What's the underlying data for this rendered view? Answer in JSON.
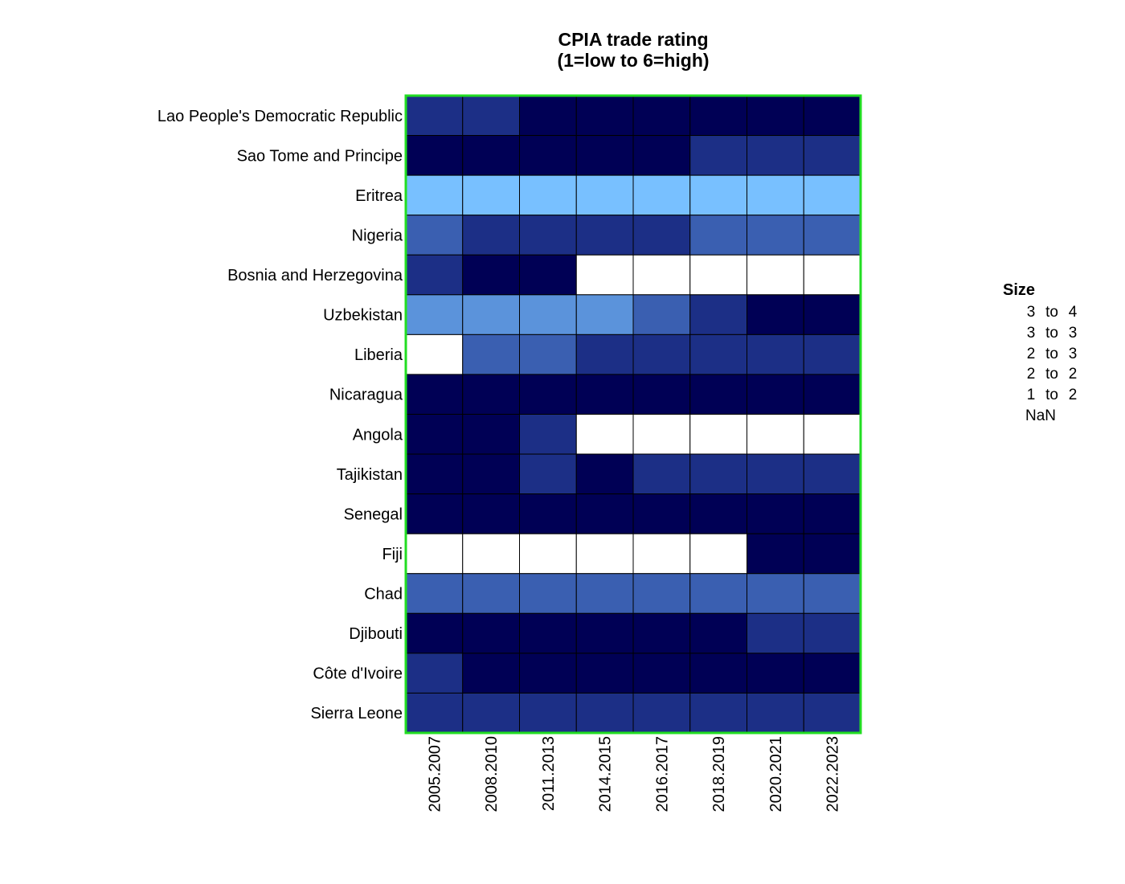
{
  "chart_data": {
    "type": "heatmap",
    "title_lines": [
      "CPIA trade rating",
      "(1=low to 6=high)"
    ],
    "x": [
      "2005.2007",
      "2008.2010",
      "2011.2013",
      "2014.2015",
      "2016.2017",
      "2018.2019",
      "2020.2021",
      "2022.2023"
    ],
    "y": [
      "Lao People's Democratic Republic",
      "Sao Tome and Principe",
      "Eritrea",
      "Nigeria",
      "Bosnia and Herzegovina",
      "Uzbekistan",
      "Liberia",
      "Nicaragua",
      "Angola",
      "Tajikistan",
      "Senegal",
      "Fiji",
      "Chad",
      "Djibouti",
      "Côte d'Ivoire",
      "Sierra Leone"
    ],
    "bins": [
      {
        "label": "3 to 4",
        "lo": "3",
        "hi": "4",
        "color": "#000055"
      },
      {
        "label": "3 to 3",
        "lo": "3",
        "hi": "3",
        "color": "#1c2f86"
      },
      {
        "label": "2 to 3",
        "lo": "2",
        "hi": "3",
        "color": "#3a5fb1"
      },
      {
        "label": "2 to 2",
        "lo": "2",
        "hi": "2",
        "color": "#5b93db"
      },
      {
        "label": "1 to 2",
        "lo": "1",
        "hi": "2",
        "color": "#78c0ff"
      },
      {
        "label": "NaN",
        "color": "#ffffff"
      }
    ],
    "z_bins": [
      [
        1,
        1,
        0,
        0,
        0,
        0,
        0,
        0
      ],
      [
        0,
        0,
        0,
        0,
        0,
        1,
        1,
        1
      ],
      [
        4,
        4,
        4,
        4,
        4,
        4,
        4,
        4
      ],
      [
        2,
        1,
        1,
        1,
        1,
        2,
        2,
        2
      ],
      [
        1,
        0,
        0,
        5,
        5,
        5,
        5,
        5
      ],
      [
        3,
        3,
        3,
        3,
        2,
        1,
        0,
        0
      ],
      [
        5,
        2,
        2,
        1,
        1,
        1,
        1,
        1
      ],
      [
        0,
        0,
        0,
        0,
        0,
        0,
        0,
        0
      ],
      [
        0,
        0,
        1,
        5,
        5,
        5,
        5,
        5
      ],
      [
        0,
        0,
        1,
        0,
        1,
        1,
        1,
        1
      ],
      [
        0,
        0,
        0,
        0,
        0,
        0,
        0,
        0
      ],
      [
        5,
        5,
        5,
        5,
        5,
        5,
        0,
        0
      ],
      [
        2,
        2,
        2,
        2,
        2,
        2,
        2,
        2
      ],
      [
        0,
        0,
        0,
        0,
        0,
        0,
        1,
        1
      ],
      [
        1,
        0,
        0,
        0,
        0,
        0,
        0,
        0
      ],
      [
        1,
        1,
        1,
        1,
        1,
        1,
        1,
        1
      ]
    ],
    "legend_title": "Size",
    "legend_position": "right",
    "frame_color": "#22dd22",
    "cell_border_color": "#000000"
  }
}
